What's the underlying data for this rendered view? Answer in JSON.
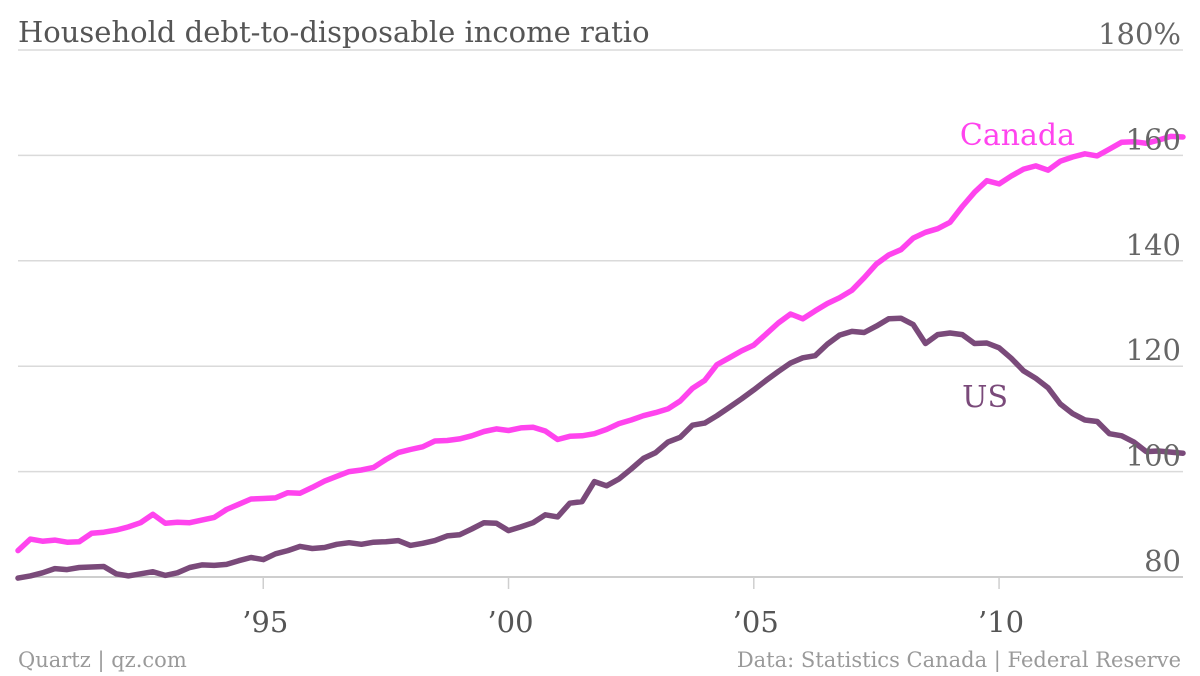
{
  "chart_data": {
    "type": "line",
    "title": "Household debt-to-disposable income ratio",
    "y_unit": "%",
    "ylim": [
      80,
      180
    ],
    "y_ticks": [
      80,
      100,
      120,
      140,
      160,
      180
    ],
    "y_tick_labels": [
      "80",
      "100",
      "120",
      "140",
      "160",
      "180%"
    ],
    "xlim": [
      1990.0,
      2013.75
    ],
    "x_ticks": [
      1995,
      2000,
      2005,
      2010
    ],
    "x_tick_labels": [
      "’95",
      "’00",
      "’05",
      "’10"
    ],
    "grid": true,
    "legend": "direct labels",
    "series": [
      {
        "name": "Canada",
        "color": "#ff44ee",
        "x": [
          1990.0,
          1990.25,
          1990.5,
          1990.75,
          1991.0,
          1991.25,
          1991.5,
          1991.75,
          1992.0,
          1992.25,
          1992.5,
          1992.75,
          1993.0,
          1993.25,
          1993.5,
          1993.75,
          1994.0,
          1994.25,
          1994.5,
          1994.75,
          1995.0,
          1995.25,
          1995.5,
          1995.75,
          1996.0,
          1996.25,
          1996.5,
          1996.75,
          1997.0,
          1997.25,
          1997.5,
          1997.75,
          1998.0,
          1998.25,
          1998.5,
          1998.75,
          1999.0,
          1999.25,
          1999.5,
          1999.75,
          2000.0,
          2000.25,
          2000.5,
          2000.75,
          2001.0,
          2001.25,
          2001.5,
          2001.75,
          2002.0,
          2002.25,
          2002.5,
          2002.75,
          2003.0,
          2003.25,
          2003.5,
          2003.75,
          2004.0,
          2004.25,
          2004.5,
          2004.75,
          2005.0,
          2005.25,
          2005.5,
          2005.75,
          2006.0,
          2006.25,
          2006.5,
          2006.75,
          2007.0,
          2007.25,
          2007.5,
          2007.75,
          2008.0,
          2008.25,
          2008.5,
          2008.75,
          2009.0,
          2009.25,
          2009.5,
          2009.75,
          2010.0,
          2010.25,
          2010.5,
          2010.75,
          2011.0,
          2011.25,
          2011.5,
          2011.75,
          2012.0,
          2012.25,
          2012.5,
          2012.75,
          2013.0,
          2013.25,
          2013.5,
          2013.75
        ],
        "y": [
          85.0,
          87.2,
          86.8,
          87.0,
          86.6,
          86.7,
          88.3,
          88.5,
          88.9,
          89.5,
          90.3,
          91.9,
          90.2,
          90.4,
          90.3,
          90.8,
          91.3,
          92.8,
          93.8,
          94.8,
          94.9,
          95.0,
          96.0,
          95.9,
          97.0,
          98.2,
          99.1,
          100.0,
          100.3,
          100.8,
          102.3,
          103.6,
          104.2,
          104.7,
          105.8,
          105.9,
          106.2,
          106.8,
          107.6,
          108.1,
          107.8,
          108.3,
          108.4,
          107.7,
          106.1,
          106.7,
          106.8,
          107.2,
          108.0,
          109.1,
          109.8,
          110.6,
          111.2,
          111.9,
          113.4,
          115.8,
          117.3,
          120.3,
          121.6,
          122.9,
          124.0,
          126.1,
          128.2,
          129.9,
          129.0,
          130.5,
          131.9,
          133.0,
          134.4,
          136.8,
          139.4,
          141.1,
          142.1,
          144.3,
          145.4,
          146.1,
          147.3,
          150.3,
          153.0,
          155.2,
          154.6,
          156.1,
          157.4,
          158.0,
          157.2,
          158.9,
          159.7,
          160.3,
          159.9,
          161.2,
          162.5,
          162.6,
          162.3,
          162.9,
          163.6,
          163.5
        ]
      },
      {
        "name": "US",
        "color": "#7a4a7a",
        "x": [
          1990.0,
          1990.25,
          1990.5,
          1990.75,
          1991.0,
          1991.25,
          1991.5,
          1991.75,
          1992.0,
          1992.25,
          1992.5,
          1992.75,
          1993.0,
          1993.25,
          1993.5,
          1993.75,
          1994.0,
          1994.25,
          1994.5,
          1994.75,
          1995.0,
          1995.25,
          1995.5,
          1995.75,
          1996.0,
          1996.25,
          1996.5,
          1996.75,
          1997.0,
          1997.25,
          1997.5,
          1997.75,
          1998.0,
          1998.25,
          1998.5,
          1998.75,
          1999.0,
          1999.25,
          1999.5,
          1999.75,
          2000.0,
          2000.25,
          2000.5,
          2000.75,
          2001.0,
          2001.25,
          2001.5,
          2001.75,
          2002.0,
          2002.25,
          2002.5,
          2002.75,
          2003.0,
          2003.25,
          2003.5,
          2003.75,
          2004.0,
          2004.25,
          2004.5,
          2004.75,
          2005.0,
          2005.25,
          2005.5,
          2005.75,
          2006.0,
          2006.25,
          2006.5,
          2006.75,
          2007.0,
          2007.25,
          2007.5,
          2007.75,
          2008.0,
          2008.25,
          2008.5,
          2008.75,
          2009.0,
          2009.25,
          2009.5,
          2009.75,
          2010.0,
          2010.25,
          2010.5,
          2010.75,
          2011.0,
          2011.25,
          2011.5,
          2011.75,
          2012.0,
          2012.25,
          2012.5,
          2012.75,
          2013.0,
          2013.25,
          2013.5,
          2013.75
        ],
        "y": [
          79.8,
          80.2,
          80.8,
          81.6,
          81.4,
          81.8,
          81.9,
          82.0,
          80.6,
          80.2,
          80.6,
          81.0,
          80.3,
          80.8,
          81.8,
          82.3,
          82.2,
          82.4,
          83.1,
          83.7,
          83.3,
          84.4,
          85.0,
          85.8,
          85.4,
          85.6,
          86.2,
          86.5,
          86.2,
          86.6,
          86.7,
          86.9,
          86.0,
          86.4,
          86.9,
          87.8,
          88.0,
          89.1,
          90.3,
          90.2,
          88.8,
          89.5,
          90.3,
          91.8,
          91.4,
          94.0,
          94.3,
          98.1,
          97.3,
          98.6,
          100.5,
          102.5,
          103.6,
          105.6,
          106.5,
          108.8,
          109.2,
          110.6,
          112.2,
          113.8,
          115.5,
          117.3,
          119.0,
          120.6,
          121.6,
          122.0,
          124.2,
          125.9,
          126.6,
          126.4,
          127.6,
          129.0,
          129.1,
          127.9,
          124.3,
          126.0,
          126.3,
          126.0,
          124.3,
          124.4,
          123.5,
          121.5,
          119.1,
          117.7,
          115.9,
          112.8,
          111.0,
          109.8,
          109.5,
          107.2,
          106.8,
          105.6,
          103.8,
          103.9,
          103.7,
          103.5
        ]
      }
    ],
    "footer_left": "Quartz | qz.com",
    "footer_right": "Data: Statistics Canada | Federal Reserve"
  }
}
